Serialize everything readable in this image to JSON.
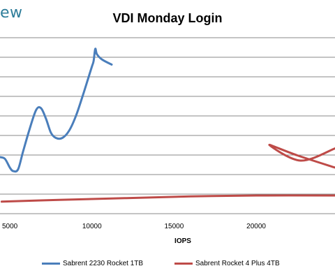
{
  "brand": {
    "text": "ew"
  },
  "chart_data": {
    "type": "line",
    "title": "VDI Monday Login",
    "xlabel": "IOPS",
    "ylabel": "",
    "xlim": [
      4400,
      24800
    ],
    "ylim": [
      0,
      10
    ],
    "x_ticks": [
      5000,
      10000,
      15000,
      20000
    ],
    "grid": true,
    "legend_position": "bottom",
    "series": [
      {
        "name": "Sabrent 2230 Rocket 1TB",
        "color": "#4a7ebb",
        "points": [
          [
            4400,
            2.2
          ],
          [
            4700,
            2.1
          ],
          [
            5000,
            1.6
          ],
          [
            5200,
            1.4
          ],
          [
            5500,
            1.5
          ],
          [
            5800,
            2.5
          ],
          [
            6200,
            3.8
          ],
          [
            6600,
            4.9
          ],
          [
            6900,
            5.0
          ],
          [
            7200,
            4.4
          ],
          [
            7500,
            3.6
          ],
          [
            7800,
            3.3
          ],
          [
            8200,
            3.3
          ],
          [
            8600,
            3.7
          ],
          [
            9000,
            4.5
          ],
          [
            9400,
            5.6
          ],
          [
            9800,
            6.8
          ],
          [
            10000,
            7.4
          ],
          [
            10100,
            7.7
          ],
          [
            10200,
            8.4
          ],
          [
            10300,
            8.1
          ],
          [
            10600,
            7.8
          ],
          [
            11200,
            7.5
          ]
        ]
      },
      {
        "name": "Sabrent Rocket 4 Plus 4TB",
        "color": "#be4b48",
        "points": [
          [
            4500,
            -0.35
          ],
          [
            8000,
            -0.25
          ],
          [
            12000,
            -0.15
          ],
          [
            16000,
            -0.05
          ],
          [
            20000,
            0.0
          ],
          [
            24800,
            0.0
          ]
        ]
      },
      {
        "name": "Sabrent Rocket 4 Plus 4TB",
        "color": "#be4b48",
        "points": [
          [
            24800,
            2.7
          ],
          [
            22700,
            2.0
          ],
          [
            20800,
            2.9
          ],
          [
            22500,
            2.3
          ],
          [
            24800,
            1.6
          ]
        ]
      }
    ]
  }
}
